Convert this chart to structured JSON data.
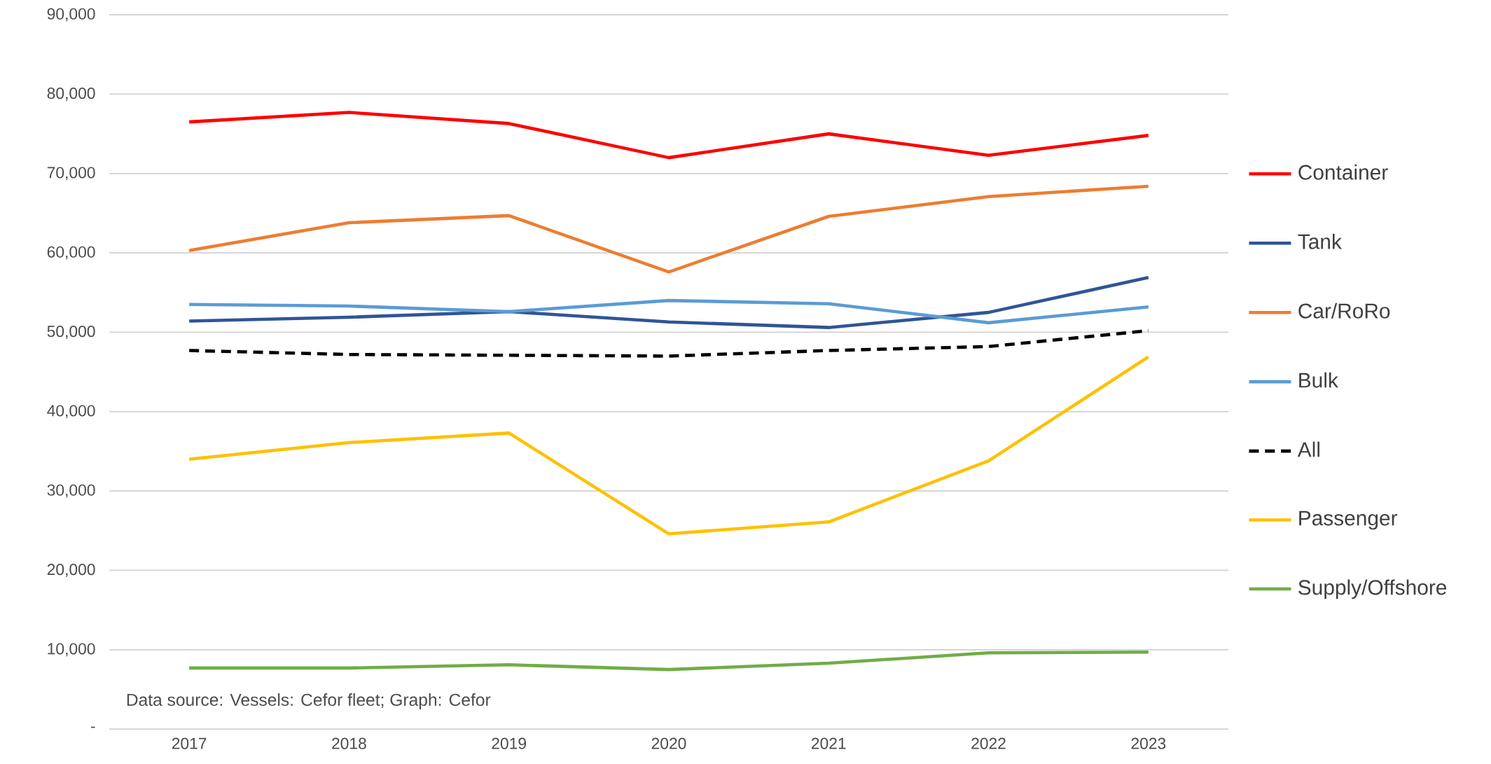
{
  "chart_data": {
    "type": "line",
    "categories": [
      "2017",
      "2018",
      "2019",
      "2020",
      "2021",
      "2022",
      "2023"
    ],
    "series": [
      {
        "name": "Container",
        "color": "#ff0000",
        "values": [
          76500,
          77700,
          76300,
          72000,
          75000,
          72300,
          74800
        ]
      },
      {
        "name": "Tank",
        "color": "#2f5597",
        "values": [
          51400,
          51900,
          52600,
          51300,
          50600,
          52500,
          56900
        ]
      },
      {
        "name": "Car/RoRo",
        "color": "#ed7d31",
        "values": [
          60300,
          63800,
          64700,
          57600,
          64600,
          67100,
          68400
        ]
      },
      {
        "name": "Bulk",
        "color": "#5b9bd5",
        "values": [
          53500,
          53300,
          52600,
          54000,
          53600,
          51200,
          53200
        ]
      },
      {
        "name": "All",
        "color": "#000000",
        "line_style": "dashed",
        "values": [
          47700,
          47200,
          47100,
          47000,
          47700,
          48200,
          50200
        ]
      },
      {
        "name": "Passenger",
        "color": "#ffc000",
        "values": [
          34000,
          36100,
          37300,
          24600,
          26100,
          33800,
          46900
        ]
      },
      {
        "name": "Supply/Offshore",
        "color": "#70ad47",
        "values": [
          7700,
          7700,
          8100,
          7500,
          8300,
          9600,
          9700
        ]
      }
    ],
    "ylim": [
      0,
      90000
    ],
    "yticks": [
      {
        "value": 0,
        "label": "-"
      },
      {
        "value": 10000,
        "label": "10,000"
      },
      {
        "value": 20000,
        "label": "20,000"
      },
      {
        "value": 30000,
        "label": "30,000"
      },
      {
        "value": 40000,
        "label": "40,000"
      },
      {
        "value": 50000,
        "label": "50,000"
      },
      {
        "value": 60000,
        "label": "60,000"
      },
      {
        "value": 70000,
        "label": "70,000"
      },
      {
        "value": 80000,
        "label": "80,000"
      },
      {
        "value": 90000,
        "label": "90,000"
      }
    ],
    "grid": "y",
    "legend": "right",
    "line_style": "solid",
    "annotations": [
      "Data source: Vessels: Cefor fleet; Graph: Cefor"
    ]
  }
}
